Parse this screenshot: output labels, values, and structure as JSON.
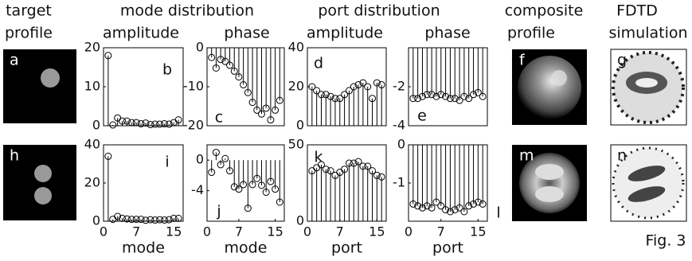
{
  "headers": [
    "target",
    "profile",
    "mode distribution",
    "amplitude",
    "phase",
    "port distribution",
    "amplitude",
    "phase",
    "composite",
    "profile",
    "FDTD",
    "simulation",
    "Fig. 3"
  ],
  "images": [
    {
      "label": "a"
    },
    {
      "label": "f"
    },
    {
      "label": "g"
    },
    {
      "label": "h"
    },
    {
      "label": "m"
    },
    {
      "label": "n"
    }
  ],
  "chart_data": [
    {
      "type": "stem",
      "label": "b",
      "x": [
        1,
        2,
        3,
        4,
        5,
        6,
        7,
        8,
        9,
        10,
        11,
        12,
        13,
        14,
        15,
        16
      ],
      "values": [
        18,
        0.2,
        2,
        1.2,
        1.2,
        0.8,
        0.8,
        0.5,
        0.7,
        0.3,
        0.4,
        0.4,
        0.5,
        0.4,
        0.8,
        1.5
      ],
      "xlim": [
        0,
        17
      ],
      "ylim": [
        0,
        20
      ],
      "yticks": [
        0,
        10,
        20
      ]
    },
    {
      "type": "stem",
      "label": "c",
      "x": [
        1,
        2,
        3,
        4,
        5,
        6,
        7,
        8,
        9,
        10,
        11,
        12,
        13,
        14,
        15,
        16
      ],
      "values": [
        -2.5,
        -5.2,
        -3,
        -3.5,
        -4.5,
        -6,
        -7.5,
        -9.5,
        -11.5,
        -14,
        -16,
        -17,
        -15.5,
        -18.5,
        -16,
        -13.5
      ],
      "xlim": [
        0,
        17
      ],
      "ylim": [
        -20,
        0
      ],
      "yticks": [
        0,
        -10,
        -20
      ]
    },
    {
      "type": "stem",
      "label": "d",
      "x": [
        1,
        2,
        3,
        4,
        5,
        6,
        7,
        8,
        9,
        10,
        11,
        12,
        13,
        14,
        15,
        16
      ],
      "values": [
        20,
        18,
        16,
        16,
        15,
        14,
        14,
        16,
        18,
        20,
        21,
        22,
        20,
        14,
        22,
        21
      ],
      "xlim": [
        0,
        17
      ],
      "ylim": [
        0,
        40
      ],
      "yticks": [
        0,
        20,
        40
      ]
    },
    {
      "type": "stem",
      "label": "e",
      "x": [
        1,
        2,
        3,
        4,
        5,
        6,
        7,
        8,
        9,
        10,
        11,
        12,
        13,
        14,
        15,
        16
      ],
      "values": [
        -2.6,
        -2.6,
        -2.5,
        -2.4,
        -2.4,
        -2.5,
        -2.4,
        -2.5,
        -2.6,
        -2.6,
        -2.7,
        -2.5,
        -2.6,
        -2.4,
        -2.3,
        -2.5
      ],
      "xlim": [
        0,
        17
      ],
      "ylim": [
        -4,
        0
      ],
      "yticks": [
        -2,
        -4
      ]
    },
    {
      "type": "stem",
      "label": "i",
      "x": [
        1,
        2,
        3,
        4,
        5,
        6,
        7,
        8,
        9,
        10,
        11,
        12,
        13,
        14,
        15,
        16
      ],
      "values": [
        34,
        1,
        2.5,
        1.5,
        1.2,
        1,
        1,
        1,
        0.5,
        0.8,
        0.6,
        0.8,
        0.6,
        0.8,
        1.5,
        1.5
      ],
      "xlim": [
        0,
        17
      ],
      "ylim": [
        0,
        40
      ],
      "yticks": [
        0,
        20,
        40
      ],
      "xticks": [
        0,
        7,
        15
      ],
      "xlabel": "mode"
    },
    {
      "type": "stem",
      "label": "j",
      "x": [
        1,
        2,
        3,
        4,
        5,
        6,
        7,
        8,
        9,
        10,
        11,
        12,
        13,
        14,
        15,
        16
      ],
      "values": [
        -1.6,
        1,
        -0.6,
        0.2,
        -1.4,
        -3.5,
        -3.8,
        -3.2,
        -6.3,
        -3.2,
        -2.4,
        -3.3,
        -4.2,
        -2.8,
        -3.8,
        -5.5
      ],
      "xlim": [
        0,
        17
      ],
      "ylim": [
        -8,
        2
      ],
      "yticks": [
        0,
        -4
      ],
      "xticks": [
        0,
        7,
        15
      ],
      "xlabel": "mode"
    },
    {
      "type": "stem",
      "label": "k",
      "x": [
        1,
        2,
        3,
        4,
        5,
        6,
        7,
        8,
        9,
        10,
        11,
        12,
        13,
        14,
        15,
        16
      ],
      "values": [
        33,
        35,
        37,
        34,
        33,
        30,
        32,
        34,
        38,
        38,
        39,
        36,
        36,
        33,
        30,
        29
      ],
      "xlim": [
        0,
        17
      ],
      "ylim": [
        0,
        50
      ],
      "yticks": [
        0,
        50
      ],
      "xticks": [
        0,
        7,
        15
      ],
      "xlabel": "port"
    },
    {
      "type": "stem",
      "label": "l",
      "x": [
        1,
        2,
        3,
        4,
        5,
        6,
        7,
        8,
        9,
        10,
        11,
        12,
        13,
        14,
        15,
        16
      ],
      "values": [
        -1.55,
        -1.6,
        -1.65,
        -1.6,
        -1.65,
        -1.5,
        -1.6,
        -1.7,
        -1.75,
        -1.7,
        -1.65,
        -1.75,
        -1.6,
        -1.55,
        -1.5,
        -1.55
      ],
      "xlim": [
        0,
        17
      ],
      "ylim": [
        -2,
        0
      ],
      "yticks": [
        0,
        -1
      ],
      "xticks": [
        0,
        7,
        15
      ],
      "xlabel": "port"
    }
  ]
}
